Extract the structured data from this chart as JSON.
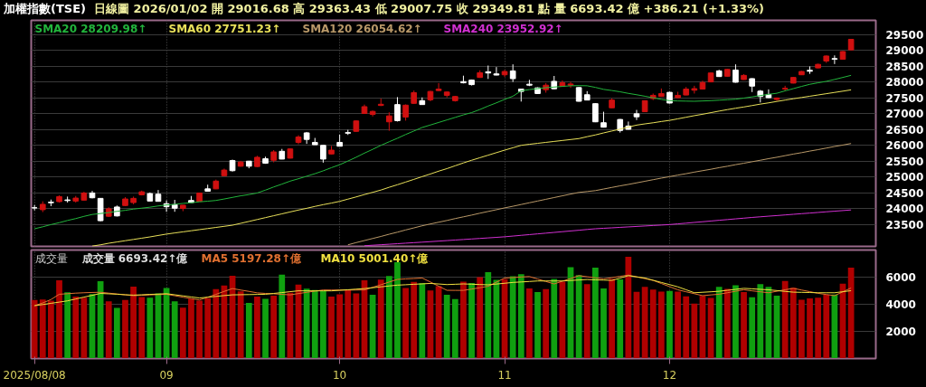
{
  "chart_data": [
    {
      "type": "candlestick",
      "title": "加權指數(TSE)",
      "subtitle": "日線圖 2026/01/02 開 29016.68 高 29363.43 低 29007.75 收 29349.81 點 量 6693.42 億 +386.21 (+1.33%)",
      "categories": [
        "2025/08/08",
        null,
        null,
        null,
        null,
        null,
        null,
        null,
        null,
        null,
        null,
        null,
        null,
        null,
        null,
        null,
        "09",
        null,
        null,
        null,
        null,
        null,
        null,
        null,
        null,
        null,
        null,
        null,
        null,
        null,
        null,
        null,
        null,
        null,
        null,
        null,
        null,
        "10",
        null,
        null,
        null,
        null,
        null,
        null,
        null,
        null,
        null,
        null,
        null,
        null,
        null,
        null,
        null,
        null,
        null,
        null,
        null,
        "11",
        null,
        null,
        null,
        null,
        null,
        null,
        null,
        null,
        null,
        null,
        null,
        null,
        null,
        null,
        null,
        null,
        null,
        null,
        null,
        "12",
        null,
        null,
        null,
        null,
        null,
        null,
        null,
        null,
        null,
        null,
        null,
        null,
        null,
        null,
        null,
        null,
        null,
        null,
        null,
        null,
        null,
        null
      ],
      "ohlc": [
        [
          24020,
          24110,
          23940,
          24020
        ],
        [
          23961,
          24225,
          23886,
          24131
        ],
        [
          24200,
          24281,
          24074,
          24180
        ],
        [
          24216,
          24413,
          24187,
          24376
        ],
        [
          24270,
          24376,
          24187,
          24250
        ],
        [
          24234,
          24395,
          24187,
          24328
        ],
        [
          24263,
          24526,
          24244,
          24489
        ],
        [
          24489,
          24555,
          24319,
          24338
        ],
        [
          24319,
          24330,
          23594,
          23613
        ],
        [
          23754,
          24036,
          23735,
          23989
        ],
        [
          24046,
          24093,
          23745,
          23764
        ],
        [
          24093,
          24357,
          24074,
          24300
        ],
        [
          24187,
          24376,
          24131,
          24319
        ],
        [
          24432,
          24564,
          24413,
          24526
        ],
        [
          24470,
          24507,
          24230,
          24234
        ],
        [
          24451,
          24583,
          24220,
          24225
        ],
        [
          24150,
          24253,
          23895,
          24055
        ],
        [
          24121,
          24272,
          23895,
          24008
        ],
        [
          23999,
          24110,
          23914,
          24103
        ],
        [
          24253,
          24395,
          24180,
          24187
        ],
        [
          24225,
          24500,
          24215,
          24489
        ],
        [
          24620,
          24752,
          24540,
          24545
        ],
        [
          24620,
          24912,
          24610,
          24865
        ],
        [
          25035,
          25261,
          25025,
          25214
        ],
        [
          25515,
          25544,
          25167,
          25195
        ],
        [
          25336,
          25506,
          25320,
          25468
        ],
        [
          25496,
          25506,
          25270,
          25336
        ],
        [
          25327,
          25666,
          25308,
          25619
        ],
        [
          25572,
          25638,
          25412,
          25431
        ],
        [
          25525,
          25845,
          25459,
          25789
        ],
        [
          25808,
          25883,
          25555,
          25562
        ],
        [
          25591,
          25900,
          25580,
          25883
        ],
        [
          26090,
          26316,
          26033,
          26260
        ],
        [
          26391,
          26420,
          26043,
          26184
        ],
        [
          26090,
          26231,
          26010,
          26015
        ],
        [
          25996,
          26010,
          25449,
          25562
        ],
        [
          25723,
          25977,
          25715,
          25845
        ],
        [
          26090,
          26335,
          25960,
          25968
        ],
        [
          26400,
          26486,
          26325,
          26380
        ],
        [
          26439,
          26790,
          26420,
          26768
        ],
        [
          27004,
          27286,
          26990,
          27220
        ],
        [
          26975,
          27098,
          26910,
          27070
        ],
        [
          27258,
          27475,
          27239,
          27296
        ],
        [
          26740,
          27041,
          26457,
          26928
        ],
        [
          27286,
          27522,
          26750,
          26778
        ],
        [
          26891,
          27290,
          26778,
          27267
        ],
        [
          27324,
          27729,
          27310,
          27663
        ],
        [
          27409,
          27512,
          27280,
          27286
        ],
        [
          27437,
          27720,
          27390,
          27701
        ],
        [
          27729,
          27965,
          27720,
          27776
        ],
        [
          27578,
          27701,
          27512,
          27682
        ],
        [
          27409,
          27560,
          27381,
          27541
        ],
        [
          28012,
          28200,
          27955,
          27974
        ],
        [
          28059,
          28078,
          27890,
          27917
        ],
        [
          28144,
          28370,
          28130,
          28294
        ],
        [
          28323,
          28520,
          28096,
          28285
        ],
        [
          28257,
          28473,
          28210,
          28219
        ],
        [
          28228,
          28380,
          28162,
          28332
        ],
        [
          28351,
          28558,
          28002,
          28106
        ],
        [
          27776,
          27790,
          27381,
          27701
        ],
        [
          27930,
          28068,
          27870,
          27900
        ],
        [
          27814,
          27830,
          27620,
          27635
        ],
        [
          27757,
          27965,
          27663,
          27899
        ],
        [
          28021,
          28191,
          27770,
          27786
        ],
        [
          27861,
          28050,
          27850,
          27974
        ],
        [
          27899,
          28002,
          27814,
          27937
        ],
        [
          27823,
          27840,
          27380,
          27390
        ],
        [
          27597,
          27710,
          27420,
          27428
        ],
        [
          27315,
          27330,
          26730,
          26740
        ],
        [
          26712,
          27059,
          26560,
          26570
        ],
        [
          27183,
          27484,
          27170,
          27428
        ],
        [
          26815,
          26830,
          26401,
          26467
        ],
        [
          26608,
          26749,
          26495,
          26504
        ],
        [
          26994,
          27117,
          26797,
          26900
        ],
        [
          27060,
          27420,
          27050,
          27409
        ],
        [
          27475,
          27635,
          27428,
          27578
        ],
        [
          27541,
          27795,
          27535,
          27635
        ],
        [
          27673,
          27690,
          27320,
          27334
        ],
        [
          27503,
          27691,
          27495,
          27578
        ],
        [
          27588,
          27842,
          27580,
          27776
        ],
        [
          27740,
          27880,
          27635,
          27790
        ],
        [
          27776,
          28040,
          27765,
          27983
        ],
        [
          28002,
          28300,
          27990,
          28285
        ],
        [
          28351,
          28388,
          28160,
          28172
        ],
        [
          28181,
          28410,
          28170,
          28398
        ],
        [
          28379,
          28558,
          27980,
          27993
        ],
        [
          28078,
          28247,
          28070,
          28209
        ],
        [
          28106,
          28120,
          27682,
          27870
        ],
        [
          27710,
          27748,
          27352,
          27541
        ],
        [
          27607,
          27767,
          27495,
          27503
        ],
        [
          27446,
          27510,
          27409,
          27494
        ],
        [
          27780,
          27880,
          27710,
          27800
        ],
        [
          27965,
          28160,
          27955,
          28144
        ],
        [
          28228,
          28350,
          28220,
          28332
        ],
        [
          28370,
          28492,
          28257,
          28340
        ],
        [
          28445,
          28580,
          28430,
          28558
        ],
        [
          28662,
          28840,
          28605,
          28822
        ],
        [
          28740,
          28841,
          28567,
          28720
        ],
        [
          28718,
          28980,
          28710,
          28963
        ],
        [
          29016.68,
          29363.43,
          29007.75,
          29349.81
        ]
      ],
      "colors": [
        "#ffffff",
        "#d01010",
        "#ffffff",
        "#d01010",
        "#ffffff",
        "#d01010",
        "#d01010",
        "#ffffff",
        "#ffffff",
        "#d01010",
        "#ffffff",
        "#d01010",
        "#d01010",
        "#d01010",
        "#ffffff",
        "#ffffff",
        "#ffffff",
        "#ffffff",
        "#d01010",
        "#ffffff",
        "#d01010",
        "#ffffff",
        "#d01010",
        "#d01010",
        "#ffffff",
        "#d01010",
        "#ffffff",
        "#d01010",
        "#ffffff",
        "#d01010",
        "#ffffff",
        "#d01010",
        "#d01010",
        "#ffffff",
        "#ffffff",
        "#ffffff",
        "#d01010",
        "#ffffff",
        "#ffffff",
        "#d01010",
        "#d01010",
        "#d01010",
        "#d01010",
        "#d01010",
        "#ffffff",
        "#d01010",
        "#d01010",
        "#ffffff",
        "#d01010",
        "#d01010",
        "#d01010",
        "#d01010",
        "#ffffff",
        "#ffffff",
        "#d01010",
        "#ffffff",
        "#ffffff",
        "#d01010",
        "#ffffff",
        "#ffffff",
        "#ffffff",
        "#ffffff",
        "#d01010",
        "#ffffff",
        "#d01010",
        "#d01010",
        "#ffffff",
        "#ffffff",
        "#ffffff",
        "#ffffff",
        "#d01010",
        "#ffffff",
        "#ffffff",
        "#ffffff",
        "#d01010",
        "#d01010",
        "#d01010",
        "#ffffff",
        "#d01010",
        "#d01010",
        "#d01010",
        "#d01010",
        "#d01010",
        "#ffffff",
        "#d01010",
        "#ffffff",
        "#d01010",
        "#ffffff",
        "#ffffff",
        "#ffffff",
        "#d01010",
        "#d01010",
        "#d01010",
        "#d01010",
        "#ffffff",
        "#d01010",
        "#d01010",
        "#ffffff",
        "#d01010",
        "#d01010"
      ],
      "series": [
        {
          "type": "line",
          "name": "SMA20 28209.98↑",
          "color": "#22b43c",
          "values": [
            23358,
            23420,
            23490,
            23550,
            23620,
            23680,
            23750,
            23810,
            23840,
            23870,
            23910,
            23940,
            23980,
            24010,
            24040,
            24080,
            24110,
            24130,
            24160,
            24180,
            24210,
            24230,
            24253,
            24300,
            24350,
            24400,
            24440,
            24489,
            24580,
            24680,
            24770,
            24865,
            24940,
            25020,
            25100,
            25190,
            25290,
            25383,
            25500,
            25620,
            25750,
            25870,
            25996,
            26110,
            26220,
            26340,
            26450,
            26561,
            26640,
            26720,
            26800,
            26880,
            26960,
            27032,
            27130,
            27240,
            27340,
            27450,
            27550,
            27720,
            27760,
            27790,
            27820,
            27840,
            27860,
            27880,
            27885,
            27880,
            27830,
            27767,
            27730,
            27690,
            27640,
            27597,
            27550,
            27500,
            27450,
            27409,
            27400,
            27395,
            27390,
            27400,
            27410,
            27425,
            27440,
            27456,
            27490,
            27530,
            27570,
            27610,
            27644,
            27720,
            27790,
            27860,
            27927,
            27975,
            28021,
            28080,
            28145,
            28209.98
          ]
        },
        {
          "type": "line",
          "name": "SMA60 27751.23↑",
          "color": "#e8e05a",
          "values": [
            null,
            null,
            null,
            null,
            null,
            null,
            null,
            22810,
            22850,
            22900,
            22940,
            22980,
            23020,
            23060,
            23100,
            23145,
            23189,
            23225,
            23260,
            23295,
            23330,
            23365,
            23400,
            23435,
            23471,
            23530,
            23590,
            23650,
            23710,
            23770,
            23830,
            23890,
            23950,
            24005,
            24065,
            24120,
            24170,
            24225,
            24295,
            24365,
            24440,
            24510,
            24583,
            24670,
            24750,
            24835,
            24920,
            25007,
            25090,
            25180,
            25260,
            25350,
            25440,
            25525,
            25605,
            25685,
            25765,
            25845,
            25920,
            25996,
            26030,
            26060,
            26090,
            26120,
            26150,
            26180,
            26210,
            26270,
            26325,
            26390,
            26450,
            26510,
            26575,
            26636,
            26675,
            26710,
            26750,
            26787,
            26835,
            26885,
            26935,
            26980,
            27030,
            27080,
            27126,
            27170,
            27210,
            27255,
            27300,
            27340,
            27385,
            27428,
            27470,
            27510,
            27550,
            27590,
            27630,
            27670,
            27710,
            27751.23
          ]
        },
        {
          "type": "line",
          "name": "SMA120 26054.62↑",
          "color": "#b89868",
          "values": [
            null,
            null,
            null,
            null,
            null,
            null,
            null,
            null,
            null,
            null,
            null,
            null,
            null,
            null,
            null,
            null,
            null,
            null,
            null,
            null,
            null,
            null,
            null,
            null,
            null,
            null,
            null,
            null,
            null,
            null,
            null,
            null,
            null,
            null,
            null,
            null,
            null,
            null,
            22850,
            22920,
            22985,
            23050,
            23115,
            23185,
            23250,
            23320,
            23385,
            23452,
            23510,
            23565,
            23620,
            23680,
            23735,
            23790,
            23850,
            23905,
            23960,
            24018,
            24070,
            24125,
            24180,
            24235,
            24290,
            24345,
            24400,
            24455,
            24507,
            24535,
            24564,
            24615,
            24665,
            24715,
            24760,
            24810,
            24860,
            24910,
            24960,
            25007,
            25055,
            25100,
            25150,
            25195,
            25240,
            25290,
            25335,
            25385,
            25430,
            25478,
            25525,
            25575,
            25620,
            25670,
            25720,
            25765,
            25815,
            25860,
            25910,
            25960,
            26005,
            26054.62
          ]
        },
        {
          "type": "line",
          "name": "SMA240 23952.92↑",
          "color": "#d030d0",
          "values": [
            null,
            null,
            null,
            null,
            null,
            null,
            null,
            null,
            null,
            null,
            null,
            null,
            null,
            null,
            null,
            null,
            null,
            null,
            null,
            null,
            null,
            null,
            null,
            null,
            null,
            null,
            null,
            null,
            null,
            null,
            null,
            null,
            null,
            null,
            null,
            null,
            null,
            null,
            null,
            null,
            22821,
            22837,
            22853,
            22869,
            22885,
            22902,
            22918,
            22934,
            22950,
            22967,
            22984,
            23001,
            23018,
            23035,
            23052,
            23069,
            23086,
            23104,
            23127,
            23150,
            23173,
            23196,
            23219,
            23242,
            23265,
            23288,
            23311,
            23335,
            23358,
            23373,
            23387,
            23402,
            23417,
            23431,
            23446,
            23461,
            23475,
            23490,
            23513,
            23535,
            23558,
            23580,
            23603,
            23626,
            23648,
            23671,
            23693,
            23716,
            23736,
            23756,
            23775,
            23795,
            23815,
            23835,
            23854,
            23874,
            23894,
            23914,
            23933,
            23952.92
          ]
        }
      ],
      "ylim": [
        22800,
        29950
      ],
      "yticks": [
        23500,
        24000,
        24500,
        25000,
        25500,
        26000,
        26500,
        27000,
        27500,
        28000,
        28500,
        29000,
        29500
      ],
      "grid": true,
      "legend": "top left",
      "tick_labels": "y"
    },
    {
      "type": "bar",
      "title": "成交量",
      "categories": [
        "2025/08/08",
        null,
        null,
        null,
        null,
        null,
        null,
        null,
        null,
        null,
        null,
        null,
        null,
        null,
        null,
        null,
        "09",
        null,
        null,
        null,
        null,
        null,
        null,
        null,
        null,
        null,
        null,
        null,
        null,
        null,
        null,
        null,
        null,
        null,
        null,
        null,
        null,
        "10",
        null,
        null,
        null,
        null,
        null,
        null,
        null,
        null,
        null,
        null,
        null,
        null,
        null,
        null,
        null,
        null,
        null,
        null,
        null,
        "11",
        null,
        null,
        null,
        null,
        null,
        null,
        null,
        null,
        null,
        null,
        null,
        null,
        null,
        null,
        null,
        null,
        null,
        null,
        null,
        "12",
        null,
        null,
        null,
        null,
        null,
        null,
        null,
        null,
        null,
        null,
        null,
        null,
        null,
        null,
        null,
        null,
        null,
        null,
        null,
        null,
        null,
        null
      ],
      "series": [
        {
          "type": "bar",
          "name": "成交量 6693.42↑億",
          "values": [
            4316,
            4358,
            4274,
            5768,
            4884,
            4569,
            4484,
            4758,
            5705,
            4211,
            3727,
            4316,
            5305,
            4527,
            4484,
            4800,
            5200,
            4211,
            3748,
            4421,
            4274,
            4442,
            5116,
            5389,
            6105,
            4947,
            4105,
            4569,
            4400,
            4632,
            6189,
            4842,
            5453,
            5158,
            5053,
            4990,
            4569,
            4737,
            5053,
            4800,
            5768,
            4695,
            5811,
            6084,
            7095,
            5200,
            5642,
            5558,
            5011,
            5326,
            4695,
            4379,
            5660,
            5566,
            6000,
            6369,
            5805,
            5848,
            6065,
            6217,
            5175,
            4893,
            5110,
            5870,
            5675,
            6738,
            6152,
            5479,
            6694,
            5175,
            5870,
            5826,
            7497,
            4915,
            5284,
            5089,
            4937,
            4980,
            4937,
            4590,
            4047,
            4611,
            4459,
            5284,
            5132,
            5392,
            4893,
            4524,
            5479,
            5284,
            4633,
            5718,
            5219,
            4329,
            4438,
            4481,
            4698,
            4720,
            5523,
            6693.42
          ],
          "colors": [
            "#b00000",
            "#b00000",
            "#b00000",
            "#b00000",
            "#10a010",
            "#b00000",
            "#b00000",
            "#10a010",
            "#10a010",
            "#b00000",
            "#10a010",
            "#b00000",
            "#b00000",
            "#b00000",
            "#10a010",
            "#10a010",
            "#10a010",
            "#10a010",
            "#b00000",
            "#b00000",
            "#b00000",
            "#b00000",
            "#b00000",
            "#b00000",
            "#b00000",
            "#b00000",
            "#10a010",
            "#b00000",
            "#10a010",
            "#b00000",
            "#10a010",
            "#b00000",
            "#b00000",
            "#10a010",
            "#10a010",
            "#10a010",
            "#b00000",
            "#b00000",
            "#b00000",
            "#b00000",
            "#b00000",
            "#10a010",
            "#b00000",
            "#10a010",
            "#10a010",
            "#b00000",
            "#b00000",
            "#10a010",
            "#b00000",
            "#b00000",
            "#10a010",
            "#10a010",
            "#b00000",
            "#10a010",
            "#b00000",
            "#10a010",
            "#10a010",
            "#b00000",
            "#10a010",
            "#10a010",
            "#b00000",
            "#10a010",
            "#b00000",
            "#10a010",
            "#b00000",
            "#10a010",
            "#10a010",
            "#b00000",
            "#10a010",
            "#10a010",
            "#b00000",
            "#10a010",
            "#b00000",
            "#b00000",
            "#b00000",
            "#b00000",
            "#b00000",
            "#10a010",
            "#b00000",
            "#b00000",
            "#b00000",
            "#b00000",
            "#b00000",
            "#10a010",
            "#b00000",
            "#10a010",
            "#b00000",
            "#10a010",
            "#10a010",
            "#10a010",
            "#10a010",
            "#b00000",
            "#b00000",
            "#b00000",
            "#b00000",
            "#b00000",
            "#b00000",
            "#10a010",
            "#b00000",
            "#b00000"
          ]
        },
        {
          "type": "line",
          "name": "MA5 5197.28↑億",
          "color": "#e07030",
          "values": [
            3895,
            4100,
            4350,
            4737,
            4780,
            4820,
            4850,
            4870,
            4884,
            4820,
            4760,
            4700,
            4632,
            4660,
            4690,
            4710,
            4737,
            4630,
            4520,
            4420,
            4316,
            4520,
            4730,
            4950,
            5158,
            5050,
            4950,
            4842,
            4800,
            4770,
            4730,
            4695,
            4790,
            4880,
            4970,
            5053,
            5050,
            5050,
            5050,
            5050,
            5053,
            5250,
            5440,
            5640,
            5832,
            5870,
            5900,
            5937,
            5640,
            5330,
            5030,
            5025,
            5023,
            5120,
            5220,
            5327,
            5630,
            5935,
            5970,
            6010,
            6043,
            5860,
            5680,
            5501,
            5700,
            5900,
            6108,
            6030,
            5950,
            5870,
            5960,
            6060,
            6152,
            6020,
            5890,
            5761,
            5530,
            5300,
            5067,
            4920,
            4780,
            4633,
            4690,
            4741,
            4850,
            4960,
            5067,
            4990,
            4920,
            4850,
            4960,
            5070,
            5175,
            5050,
            4930,
            4806,
            4720,
            4633,
            4920,
            5197.28
          ]
        },
        {
          "type": "line",
          "name": "MA10 5001.40↑億",
          "color": "#f0e040",
          "values": [
            3895,
            3980,
            4070,
            4160,
            4253,
            4390,
            4530,
            4660,
            4800,
            4770,
            4740,
            4700,
            4674,
            4700,
            4730,
            4750,
            4779,
            4700,
            4620,
            4540,
            4463,
            4520,
            4580,
            4640,
            4695,
            4705,
            4715,
            4725,
            4737,
            4800,
            4860,
            4930,
            4990,
            4990,
            4990,
            4990,
            4990,
            5030,
            5070,
            5115,
            5158,
            5220,
            5285,
            5350,
            5411,
            5440,
            5475,
            5505,
            5537,
            5495,
            5453,
            5475,
            5500,
            5480,
            5455,
            5436,
            5490,
            5550,
            5609,
            5645,
            5680,
            5718,
            5718,
            5718,
            5718,
            5755,
            5790,
            5826,
            5800,
            5780,
            5761,
            5930,
            6108,
            6020,
            5935,
            5770,
            5609,
            5450,
            5284,
            5070,
            4850,
            4885,
            4920,
            4958,
            5030,
            5100,
            5175,
            5140,
            5100,
            5067,
            5010,
            4950,
            4893,
            4880,
            4865,
            4850,
            4850,
            4850,
            4925,
            5001.4
          ]
        }
      ],
      "ylim": [
        0,
        8000
      ],
      "yticks": [
        2000,
        4000,
        6000
      ],
      "grid": true,
      "legend": "top left"
    }
  ]
}
